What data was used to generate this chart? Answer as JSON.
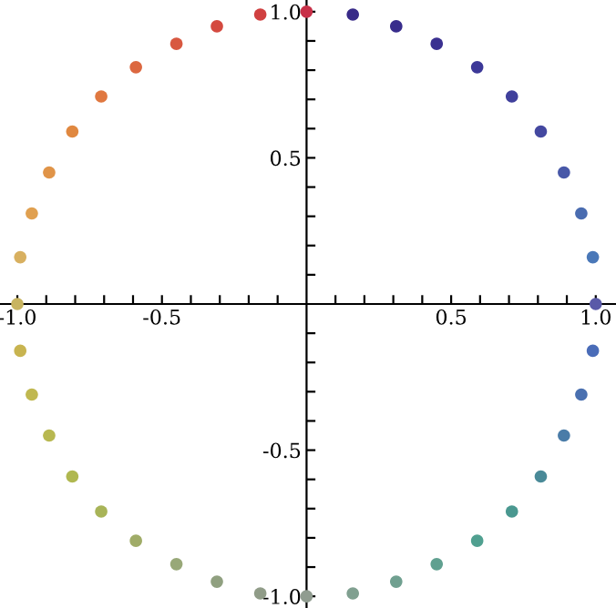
{
  "chart_data": {
    "type": "scatter",
    "marker": "circle",
    "grid": false,
    "x": [
      1,
      0.99,
      0.95,
      0.89,
      0.81,
      0.71,
      0.59,
      0.45,
      0.31,
      0.16,
      0,
      -0.16,
      -0.31,
      -0.45,
      -0.59,
      -0.71,
      -0.81,
      -0.89,
      -0.95,
      -0.99,
      -1,
      -0.99,
      -0.95,
      -0.89,
      -0.81,
      -0.71,
      -0.59,
      -0.45,
      -0.31,
      -0.16,
      0,
      0.16,
      0.31,
      0.45,
      0.59,
      0.71,
      0.81,
      0.89,
      0.95,
      0.99
    ],
    "values": [
      0,
      0.16,
      0.31,
      0.45,
      0.59,
      0.71,
      0.81,
      0.89,
      0.95,
      0.99,
      1,
      0.99,
      0.95,
      0.89,
      0.81,
      0.71,
      0.59,
      0.45,
      0.31,
      0.16,
      0,
      -0.16,
      -0.31,
      -0.45,
      -0.59,
      -0.71,
      -0.81,
      -0.89,
      -0.95,
      -0.99,
      -1,
      -0.99,
      -0.95,
      -0.89,
      -0.81,
      -0.71,
      -0.59,
      -0.45,
      -0.31,
      -0.16
    ],
    "colors": [
      "#5a5aa8",
      "#4a78b8",
      "#4a6cb0",
      "#4858a8",
      "#4448a0",
      "#40409c",
      "#3c3898",
      "#3a3090",
      "#382c8c",
      "#382a88",
      "#c83048",
      "#d04040",
      "#d44a40",
      "#d85840",
      "#dc6840",
      "#e07840",
      "#e08840",
      "#e09448",
      "#e0a050",
      "#d8b060",
      "#c8b460",
      "#c8b450",
      "#c0b850",
      "#b8b850",
      "#b0b850",
      "#a8b458",
      "#a0ac68",
      "#98a878",
      "#90a080",
      "#909c88",
      "#909c90",
      "#80a090",
      "#70a090",
      "#60a090",
      "#50a090",
      "#4a9890",
      "#4a8a98",
      "#4a7ca8",
      "#4a70b0",
      "#4a6cb8"
    ],
    "xlim": [
      -1.06,
      1.07
    ],
    "ylim": [
      -1.04,
      1.04
    ],
    "xticks": [
      {
        "value": -1,
        "label": "-1.0"
      },
      {
        "value": -0.9,
        "label": null
      },
      {
        "value": -0.8,
        "label": null
      },
      {
        "value": -0.7,
        "label": null
      },
      {
        "value": -0.6,
        "label": null
      },
      {
        "value": -0.5,
        "label": "-0.5"
      },
      {
        "value": -0.4,
        "label": null
      },
      {
        "value": -0.3,
        "label": null
      },
      {
        "value": -0.2,
        "label": null
      },
      {
        "value": -0.1,
        "label": null
      },
      {
        "value": 0.1,
        "label": null
      },
      {
        "value": 0.2,
        "label": null
      },
      {
        "value": 0.3,
        "label": null
      },
      {
        "value": 0.4,
        "label": null
      },
      {
        "value": 0.5,
        "label": "0.5"
      },
      {
        "value": 0.6,
        "label": null
      },
      {
        "value": 0.7,
        "label": null
      },
      {
        "value": 0.8,
        "label": null
      },
      {
        "value": 0.9,
        "label": null
      },
      {
        "value": 1,
        "label": "1.0"
      }
    ],
    "yticks": [
      {
        "value": -1,
        "label": "-1.0"
      },
      {
        "value": -0.9,
        "label": null
      },
      {
        "value": -0.8,
        "label": null
      },
      {
        "value": -0.7,
        "label": null
      },
      {
        "value": -0.6,
        "label": null
      },
      {
        "value": -0.5,
        "label": "-0.5"
      },
      {
        "value": -0.4,
        "label": null
      },
      {
        "value": -0.3,
        "label": null
      },
      {
        "value": -0.2,
        "label": null
      },
      {
        "value": -0.1,
        "label": null
      },
      {
        "value": 0.1,
        "label": null
      },
      {
        "value": 0.2,
        "label": null
      },
      {
        "value": 0.3,
        "label": null
      },
      {
        "value": 0.4,
        "label": null
      },
      {
        "value": 0.5,
        "label": "0.5"
      },
      {
        "value": 0.6,
        "label": null
      },
      {
        "value": 0.7,
        "label": null
      },
      {
        "value": 0.8,
        "label": null
      },
      {
        "value": 0.9,
        "label": null
      },
      {
        "value": 1,
        "label": "1.0"
      }
    ]
  }
}
